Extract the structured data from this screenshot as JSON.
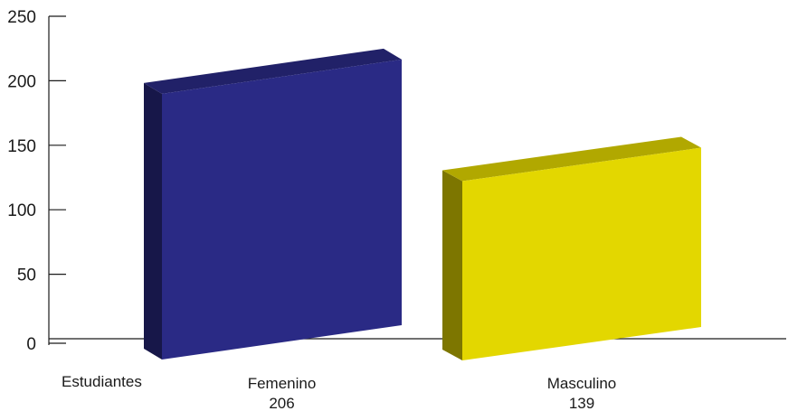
{
  "chart_data": {
    "type": "bar",
    "categories": [
      "Femenino",
      "Masculino"
    ],
    "value_labels": [
      "206",
      "139"
    ],
    "series": [
      {
        "values": [
          206,
          139
        ],
        "colors": [
          "#2a2a85",
          "#e3d700"
        ]
      }
    ],
    "ylim": [
      0,
      250
    ],
    "yticks": [
      "0",
      "50",
      "100",
      "150",
      "200",
      "250"
    ],
    "xlabel": "Estudiantes",
    "ylabel": "",
    "title": "",
    "grid": false,
    "legend": "none",
    "style": "3d"
  }
}
